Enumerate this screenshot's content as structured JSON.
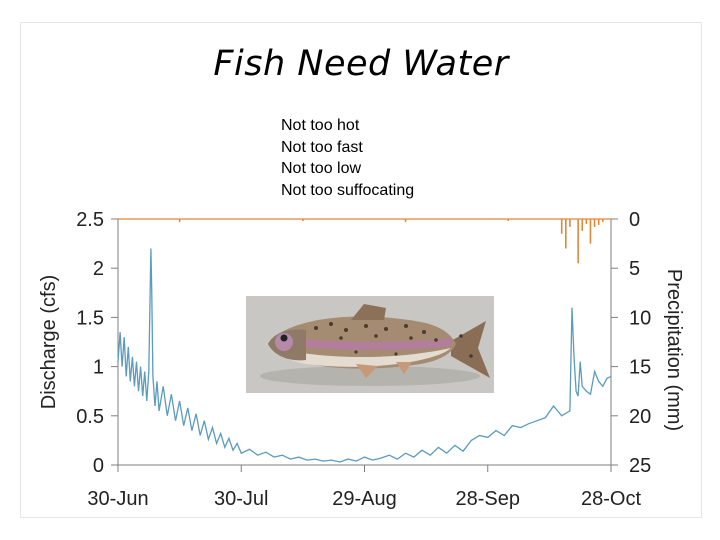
{
  "slide": {
    "title": "Fish Need Water",
    "notes": [
      "Not too hot",
      "Not too fast",
      "Not too low",
      "Not too suffocating"
    ]
  },
  "chart_data": {
    "type": "line",
    "title": "",
    "xlabel": "",
    "ylabel": "Discharge (cfs)",
    "y2label": "Precipitation (mm)",
    "categories": [
      "30-Jun",
      "30-Jul",
      "29-Aug",
      "28-Sep",
      "28-Oct"
    ],
    "xlim_days": [
      0,
      120
    ],
    "ylim": [
      0,
      2.5
    ],
    "yticks": [
      "0",
      "0.5",
      "1",
      "1.5",
      "2",
      "2.5"
    ],
    "y2lim_inverted": [
      0,
      25
    ],
    "y2ticks": [
      "0",
      "5",
      "10",
      "15",
      "20",
      "25"
    ],
    "grid": false,
    "colors": {
      "discharge": "#5b9bbd",
      "precipitation": "#e0883a",
      "axis": "#7f7f7f"
    },
    "series": [
      {
        "name": "Discharge",
        "axis": "left",
        "x": [
          0,
          0.5,
          1,
          1.5,
          2,
          2.5,
          3,
          3.5,
          4,
          4.5,
          5,
          5.5,
          6,
          6.5,
          7,
          7.5,
          8,
          8.2,
          8.5,
          9,
          9.5,
          10,
          11,
          12,
          13,
          14,
          15,
          16,
          17,
          18,
          19,
          20,
          21,
          22,
          23,
          24,
          25,
          26,
          27,
          28,
          29,
          30,
          32,
          34,
          36,
          38,
          40,
          42,
          44,
          46,
          48,
          50,
          52,
          54,
          56,
          58,
          60,
          62,
          64,
          66,
          68,
          70,
          72,
          74,
          76,
          78,
          80,
          82,
          84,
          86,
          88,
          90,
          92,
          94,
          96,
          98,
          100,
          102,
          104,
          106,
          108,
          110,
          110.5,
          111,
          111.5,
          112,
          112.5,
          113,
          114,
          115,
          116,
          117,
          118,
          119,
          120
        ],
        "values": [
          1.05,
          1.35,
          1.0,
          1.3,
          0.9,
          1.2,
          0.85,
          1.1,
          0.8,
          1.05,
          0.75,
          1.0,
          0.7,
          0.95,
          0.65,
          0.95,
          2.2,
          1.8,
          0.9,
          0.6,
          0.85,
          0.55,
          0.8,
          0.5,
          0.72,
          0.45,
          0.65,
          0.4,
          0.58,
          0.35,
          0.52,
          0.3,
          0.45,
          0.26,
          0.38,
          0.22,
          0.32,
          0.18,
          0.27,
          0.15,
          0.22,
          0.12,
          0.16,
          0.1,
          0.13,
          0.08,
          0.1,
          0.06,
          0.08,
          0.05,
          0.06,
          0.04,
          0.05,
          0.03,
          0.06,
          0.04,
          0.08,
          0.05,
          0.07,
          0.1,
          0.06,
          0.12,
          0.08,
          0.15,
          0.1,
          0.18,
          0.12,
          0.2,
          0.14,
          0.25,
          0.3,
          0.28,
          0.35,
          0.3,
          0.4,
          0.38,
          0.42,
          0.45,
          0.48,
          0.6,
          0.5,
          0.55,
          1.6,
          1.1,
          0.75,
          0.7,
          1.05,
          0.8,
          0.75,
          0.72,
          0.95,
          0.85,
          0.8,
          0.88,
          0.9
        ]
      },
      {
        "name": "Precipitation",
        "axis": "right",
        "x": [
          15,
          45,
          70,
          95,
          108,
          109,
          110,
          112,
          113,
          114,
          115,
          116,
          117,
          118
        ],
        "values": [
          0.3,
          0.2,
          0.3,
          0.2,
          1.5,
          3.0,
          0.8,
          4.5,
          1.2,
          0.5,
          2.5,
          0.8,
          0.6,
          0.3
        ]
      }
    ]
  }
}
